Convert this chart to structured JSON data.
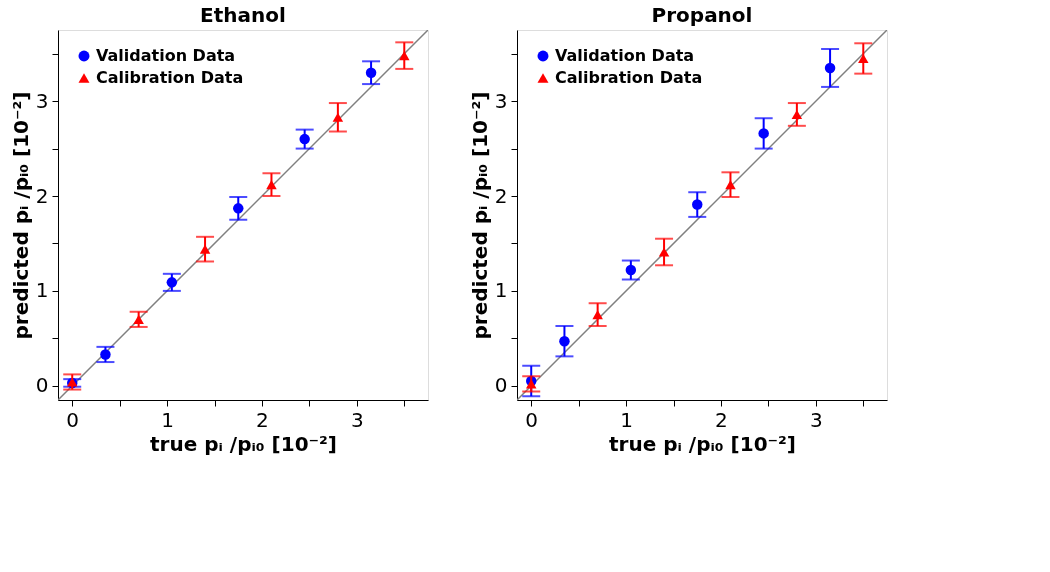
{
  "chart_data": [
    {
      "type": "scatter",
      "title": "Ethanol",
      "xlabel": "true pᵢ /pᵢ₀ [10⁻²]",
      "ylabel": "predicted pᵢ /pᵢ₀ [10⁻²]",
      "xlim": [
        -0.15,
        3.75
      ],
      "ylim": [
        -0.15,
        3.75
      ],
      "xticks": [
        0,
        {
          "value": 0.5,
          "label": null
        },
        1,
        {
          "value": 1.5,
          "label": null
        },
        2,
        {
          "value": 2.5,
          "label": null
        },
        3,
        {
          "value": 3.5,
          "label": null
        }
      ],
      "yticks": [
        0,
        {
          "value": 0.5,
          "label": null
        },
        1,
        {
          "value": 1.5,
          "label": null
        },
        2,
        {
          "value": 2.5,
          "label": null
        },
        3,
        {
          "value": 3.5,
          "label": null
        }
      ],
      "grid": false,
      "legend": "top left",
      "series": [
        {
          "name": "Validation Data",
          "marker": "circle",
          "color": "#0000ff",
          "x": [
            0,
            0.35,
            1.05,
            1.75,
            2.45,
            3.15
          ],
          "values": [
            0.03,
            0.33,
            1.09,
            1.87,
            2.6,
            3.3
          ],
          "errors": [
            0.04,
            0.08,
            0.09,
            0.12,
            0.1,
            0.12
          ]
        },
        {
          "name": "Calibration Data",
          "marker": "triangle",
          "color": "#ff0000",
          "x": [
            0,
            0.7,
            1.4,
            2.1,
            2.8,
            3.5
          ],
          "values": [
            0.04,
            0.7,
            1.44,
            2.12,
            2.83,
            3.48
          ],
          "errors": [
            0.08,
            0.08,
            0.13,
            0.12,
            0.15,
            0.14
          ]
        },
        {
          "type": "line",
          "marker": "none",
          "line_style": "solid",
          "color": "#808080",
          "x": [
            -0.15,
            3.75
          ],
          "values": [
            -0.15,
            3.75
          ]
        }
      ]
    },
    {
      "type": "scatter",
      "title": "Propanol",
      "xlabel": "true pᵢ /pᵢ₀ [10⁻²]",
      "ylabel": "predicted pᵢ /pᵢ₀ [10⁻²]",
      "xlim": [
        -0.15,
        3.75
      ],
      "ylim": [
        -0.15,
        3.75
      ],
      "xticks": [
        0,
        {
          "value": 0.5,
          "label": null
        },
        1,
        {
          "value": 1.5,
          "label": null
        },
        2,
        {
          "value": 2.5,
          "label": null
        },
        3,
        {
          "value": 3.5,
          "label": null
        }
      ],
      "yticks": [
        0,
        {
          "value": 0.5,
          "label": null
        },
        1,
        {
          "value": 1.5,
          "label": null
        },
        2,
        {
          "value": 2.5,
          "label": null
        },
        3,
        {
          "value": 3.5,
          "label": null
        }
      ],
      "grid": false,
      "legend": "top left",
      "series": [
        {
          "name": "Validation Data",
          "marker": "circle",
          "color": "#0000ff",
          "x": [
            0,
            0.35,
            1.05,
            1.75,
            2.45,
            3.15
          ],
          "values": [
            0.05,
            0.47,
            1.22,
            1.91,
            2.66,
            3.35
          ],
          "errors": [
            0.16,
            0.16,
            0.1,
            0.13,
            0.16,
            0.2
          ]
        },
        {
          "name": "Calibration Data",
          "marker": "triangle",
          "color": "#ff0000",
          "x": [
            0,
            0.7,
            1.4,
            2.1,
            2.8,
            3.5
          ],
          "values": [
            0.02,
            0.75,
            1.41,
            2.12,
            2.86,
            3.45
          ],
          "errors": [
            0.08,
            0.12,
            0.14,
            0.13,
            0.12,
            0.16
          ]
        },
        {
          "type": "line",
          "marker": "none",
          "line_style": "solid",
          "color": "#808080",
          "x": [
            -0.15,
            3.75
          ],
          "values": [
            -0.15,
            3.75
          ]
        }
      ]
    }
  ]
}
